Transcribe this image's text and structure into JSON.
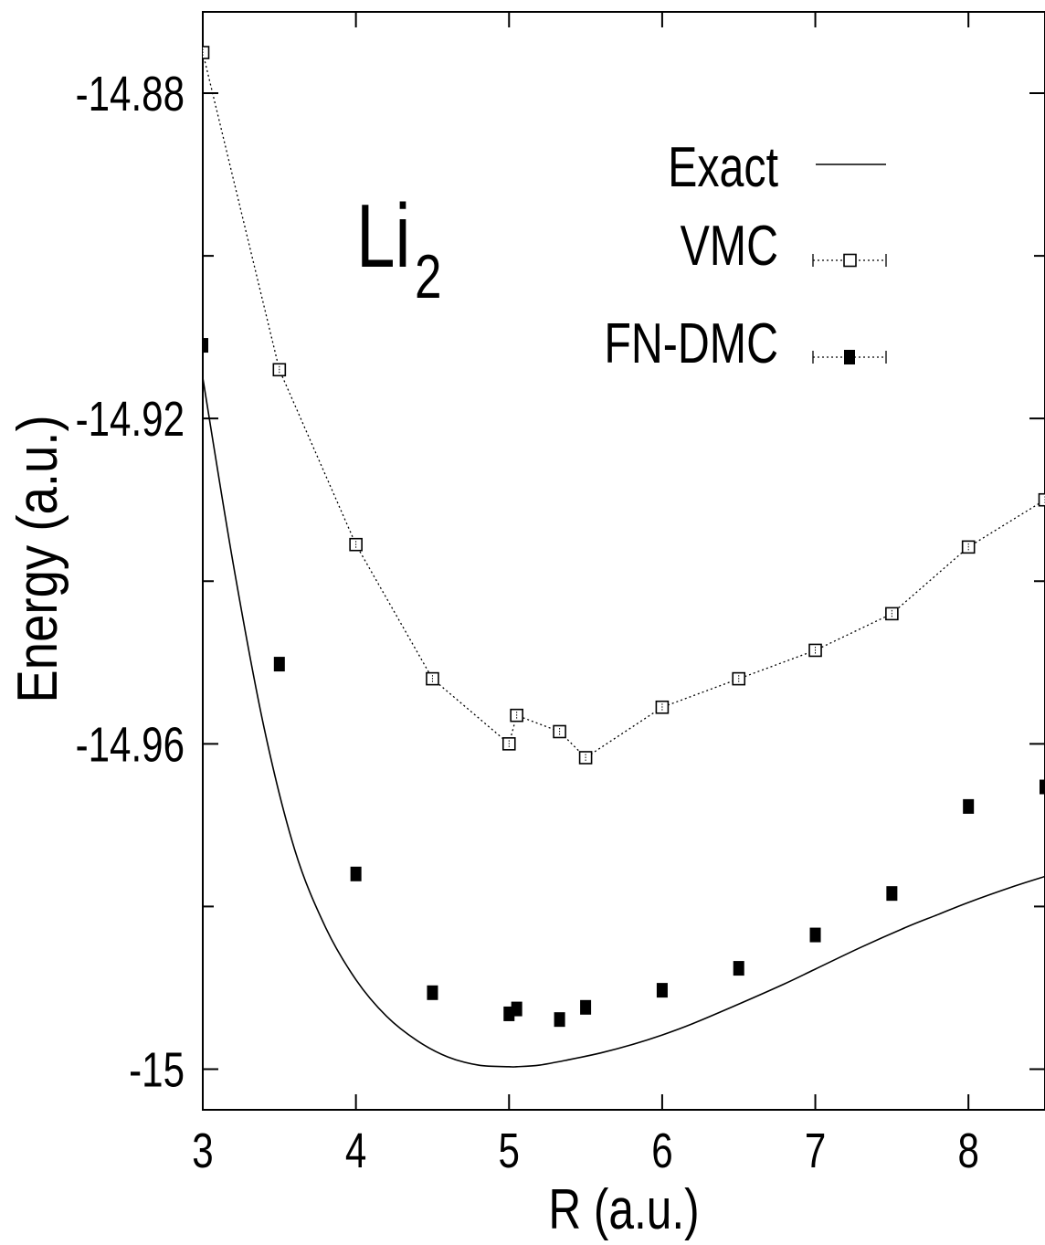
{
  "chart_data": {
    "type": "scatter",
    "title": "",
    "annotation": {
      "base": "Li",
      "subscript": "2"
    },
    "xlabel": "R (a.u.)",
    "ylabel": "Energy (a.u.)",
    "xlim": [
      3,
      8.5
    ],
    "ylim": [
      -15.005,
      -14.87
    ],
    "xticks": [
      3,
      4,
      5,
      6,
      7,
      8
    ],
    "xtick_labels": [
      "3",
      "4",
      "5",
      "6",
      "7",
      "8"
    ],
    "yticks": [
      -14.88,
      -14.92,
      -14.96,
      -15
    ],
    "ytick_labels": [
      "-14.88",
      "-14.92",
      "-14.96",
      "-15"
    ],
    "ytick_minor": [
      -14.9,
      -14.94,
      -14.98
    ],
    "legend_position": "top-right",
    "series": [
      {
        "name": "Exact",
        "style": "solid-line",
        "x": [
          3.0,
          3.2,
          3.4,
          3.6,
          3.8,
          4.0,
          4.2,
          4.4,
          4.6,
          4.8,
          5.0,
          5.05,
          5.2,
          5.4,
          5.6,
          5.8,
          6.0,
          6.2,
          6.5,
          6.8,
          7.0,
          7.3,
          7.6,
          7.8,
          8.0,
          8.3,
          8.5
        ],
        "y": [
          -14.915,
          -14.938,
          -14.958,
          -14.973,
          -14.9825,
          -14.989,
          -14.9935,
          -14.9965,
          -14.9985,
          -14.9995,
          -14.9997,
          -14.9997,
          -14.9995,
          -14.9988,
          -14.998,
          -14.997,
          -14.9958,
          -14.9944,
          -14.992,
          -14.9895,
          -14.9877,
          -14.985,
          -14.9825,
          -14.981,
          -14.9795,
          -14.9775,
          -14.9763
        ]
      },
      {
        "name": "VMC",
        "style": "dotted-line-open-square",
        "x": [
          3.0,
          3.5,
          4.0,
          4.5,
          5.0,
          5.05,
          5.33,
          5.5,
          6.0,
          6.5,
          7.0,
          7.5,
          8.0,
          8.5
        ],
        "y": [
          -14.875,
          -14.914,
          -14.9355,
          -14.952,
          -14.96,
          -14.9565,
          -14.9585,
          -14.9617,
          -14.9555,
          -14.952,
          -14.9485,
          -14.944,
          -14.9358,
          -14.93
        ]
      },
      {
        "name": "FN-DMC",
        "style": "filled-square",
        "x": [
          3.0,
          3.5,
          4.0,
          4.5,
          5.0,
          5.05,
          5.33,
          5.5,
          6.0,
          6.5,
          7.0,
          7.5,
          8.0,
          8.5
        ],
        "y": [
          -14.911,
          -14.9502,
          -14.976,
          -14.9906,
          -14.9932,
          -14.9926,
          -14.9939,
          -14.9924,
          -14.9903,
          -14.9876,
          -14.9835,
          -14.9784,
          -14.9677,
          -14.9653
        ]
      }
    ]
  }
}
